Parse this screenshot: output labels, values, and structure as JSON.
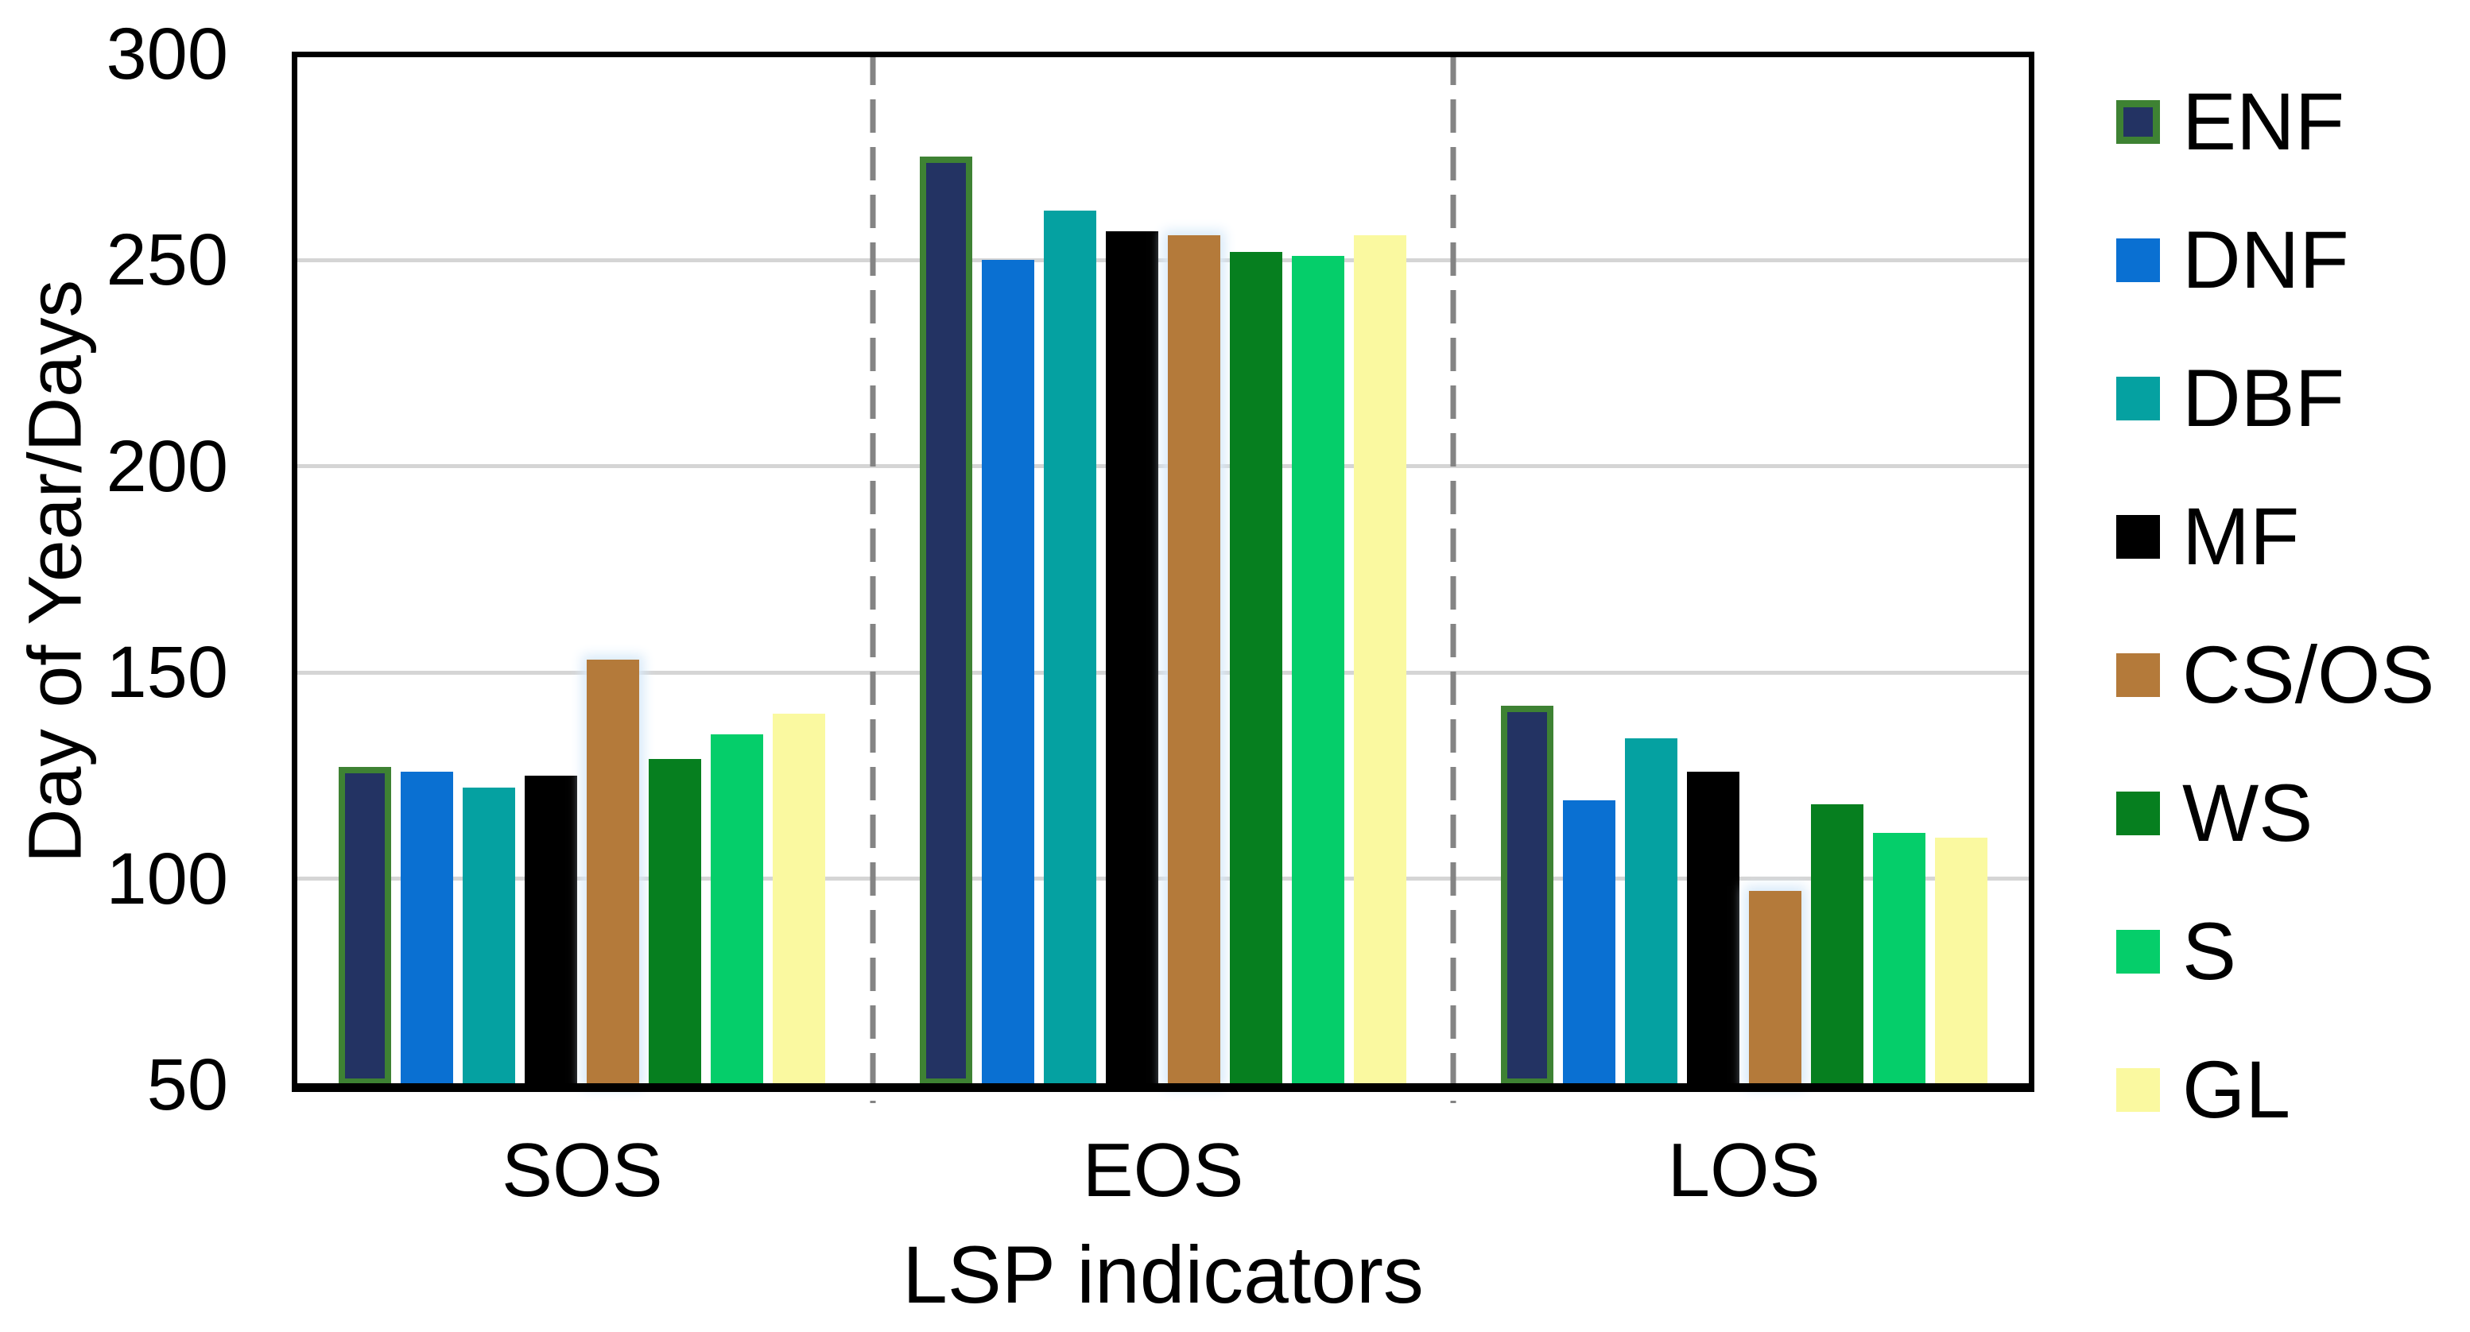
{
  "chart_data": {
    "type": "bar",
    "title": "",
    "xlabel": "LSP indicators",
    "ylabel": "Day of Year/Days",
    "categories": [
      "SOS",
      "EOS",
      "LOS"
    ],
    "ylim": [
      50,
      300
    ],
    "y_ticks": [
      50,
      100,
      150,
      200,
      250,
      300
    ],
    "grid": "horizontal gridlines every 50 units",
    "legend_position": "right",
    "group_separators": "dashed vertical lines between category groups",
    "series": [
      {
        "name": "ENF",
        "color": "#233363",
        "outline": "#3E8233",
        "values": [
          127,
          275,
          142
        ]
      },
      {
        "name": "DNF",
        "color": "#0A70D2",
        "values": [
          126,
          250,
          119
        ]
      },
      {
        "name": "DBF",
        "color": "#05A1A1",
        "values": [
          122,
          262,
          134
        ]
      },
      {
        "name": "MF",
        "color": "#000000",
        "values": [
          125,
          257,
          126
        ]
      },
      {
        "name": "CS/OS",
        "color": "#B47A3A",
        "halo": "#D9EAF9",
        "values": [
          153,
          256,
          97
        ]
      },
      {
        "name": "WS",
        "color": "#067F1F",
        "values": [
          129,
          252,
          118
        ]
      },
      {
        "name": "S",
        "color": "#05CE6A",
        "values": [
          135,
          251,
          111
        ]
      },
      {
        "name": "GL",
        "color": "#FAF9A0",
        "values": [
          140,
          256,
          110
        ]
      }
    ],
    "colors": {
      "axis_frame": "#000000",
      "gridline": "#D5D5D5",
      "separator": "#848484",
      "background": "#FFFFFF"
    }
  }
}
